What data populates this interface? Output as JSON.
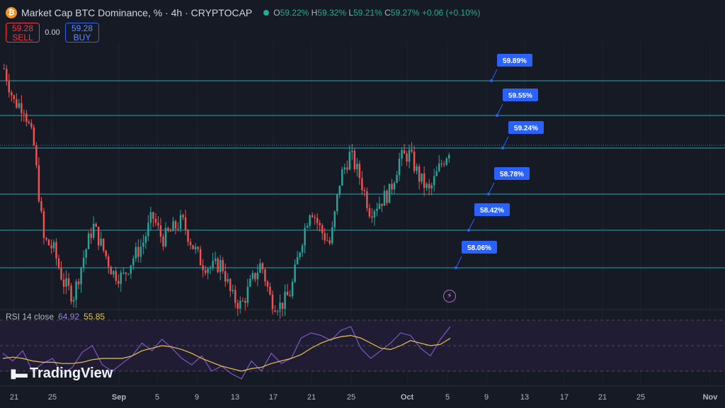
{
  "header": {
    "coin_icon": "₿",
    "title": "Market Cap BTC Dominance, % · 4h · CRYPTOCAP",
    "o_label": "O",
    "o_value": "59.22%",
    "h_label": "H",
    "h_value": "59.32%",
    "l_label": "L",
    "l_value": "59.21%",
    "c_label": "C",
    "c_value": "59.27%",
    "change": "+0.06 (+0.10%)"
  },
  "trade": {
    "sell_price": "59.28",
    "sell_label": "SELL",
    "spread": "0.00",
    "buy_price": "59.28",
    "buy_label": "BUY"
  },
  "rsi": {
    "name": "RSI 14 close",
    "value_rsi": "64.92",
    "value_ma": "55.85"
  },
  "logo": {
    "text": "TradingView"
  },
  "icons": {
    "bolt": "⚡"
  },
  "colors": {
    "background": "#161a25",
    "up": "#26a69a",
    "down": "#ef5350",
    "level_line": "#1fa5b8",
    "level_label": "#2962ff",
    "rsi": "#7e57c2",
    "rsi_ma": "#e8c547"
  },
  "chart_data": [
    {
      "type": "candlestick",
      "title": "Market Cap BTC Dominance, % · 4h · CRYPTOCAP",
      "xlabel": "",
      "ylabel": "",
      "x_ticks": [
        "21",
        "25",
        "Sep",
        "5",
        "9",
        "13",
        "17",
        "21",
        "25",
        "Oct",
        "5",
        "9",
        "13",
        "17",
        "21",
        "25",
        "Nov"
      ],
      "ylim": [
        57.6,
        60.3
      ],
      "series": [
        {
          "name": "price_path_close",
          "values": [
            60.1,
            59.75,
            59.7,
            59.3,
            58.3,
            58.2,
            57.85,
            57.7,
            58.1,
            58.45,
            58.2,
            57.95,
            57.9,
            58.1,
            58.25,
            58.55,
            58.3,
            58.4,
            58.5,
            58.25,
            58.05,
            58.0,
            58.05,
            57.7,
            57.6,
            57.85,
            58.05,
            57.65,
            57.6,
            57.75,
            58.25,
            58.65,
            58.4,
            58.25,
            58.95,
            59.2,
            58.95,
            58.6,
            58.7,
            58.8,
            59.15,
            59.2,
            58.95,
            58.8,
            59.05,
            59.25
          ]
        }
      ],
      "price_levels": [
        "59.89%",
        "59.55%",
        "59.24%",
        "58.78%",
        "58.42%",
        "58.06%"
      ]
    },
    {
      "type": "line",
      "title": "RSI 14 close",
      "series": [
        {
          "name": "RSI",
          "values": [
            44,
            38,
            46,
            30,
            36,
            40,
            28,
            33,
            45,
            50,
            35,
            30,
            36,
            42,
            52,
            46,
            55,
            48,
            40,
            35,
            42,
            30,
            34,
            28,
            24,
            38,
            30,
            44,
            36,
            40,
            56,
            60,
            58,
            54,
            62,
            65,
            48,
            40,
            46,
            52,
            60,
            58,
            48,
            42,
            55,
            64.92
          ]
        },
        {
          "name": "RSI MA",
          "values": [
            40,
            41,
            40,
            38,
            37,
            37,
            36,
            36,
            37,
            39,
            40,
            40,
            40,
            42,
            46,
            48,
            50,
            49,
            47,
            44,
            40,
            37,
            34,
            32,
            30,
            32,
            33,
            36,
            38,
            40,
            43,
            48,
            52,
            55,
            57,
            58,
            56,
            52,
            48,
            47,
            50,
            54,
            52,
            50,
            51,
            55.85
          ]
        }
      ]
    }
  ]
}
